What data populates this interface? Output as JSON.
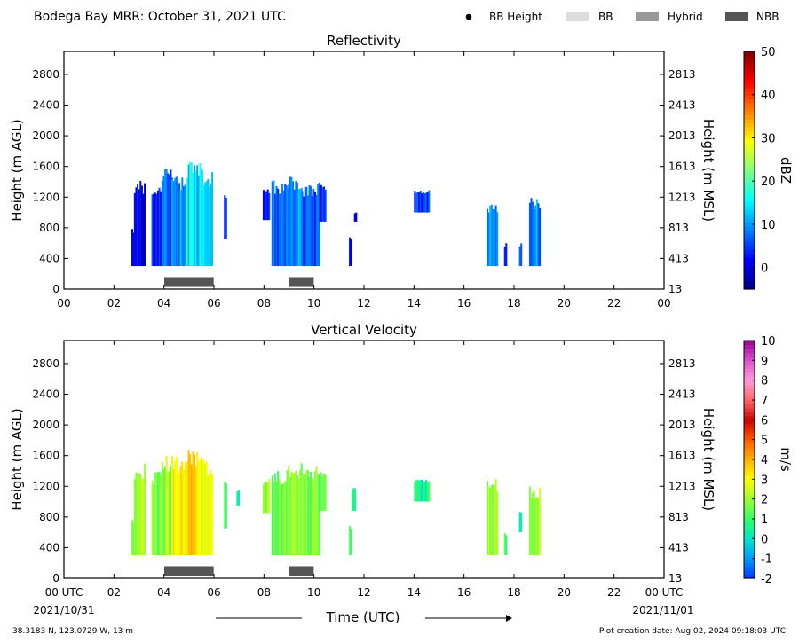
{
  "header": {
    "title": "Bodega Bay MRR:  October 31, 2021 UTC",
    "legend": [
      {
        "label": "BB Height",
        "kind": "marker",
        "color": "#000000"
      },
      {
        "label": "BB",
        "kind": "patch",
        "color": "#dddddd"
      },
      {
        "label": "Hybrid",
        "kind": "patch",
        "color": "#999999"
      },
      {
        "label": "NBB",
        "kind": "patch",
        "color": "#555555"
      }
    ]
  },
  "footer": {
    "location": "38.3183 N, 123.0729 W, 13 m",
    "creation": "Plot creation date: Aug 02, 2024 09:18:03 UTC",
    "xlabel": "Time (UTC)",
    "start_date": "2021/10/31",
    "end_date": "2021/11/01"
  },
  "chart_data": [
    {
      "type": "heatmap",
      "title": "Reflectivity",
      "ylabel": "Height (m AGL)",
      "ylabel_right": "Height (m MSL)",
      "x_ticks": [
        "00",
        "02",
        "04",
        "06",
        "08",
        "10",
        "12",
        "14",
        "16",
        "18",
        "20",
        "22",
        "00"
      ],
      "xlim": [
        0,
        24
      ],
      "ylim": [
        0,
        3100
      ],
      "y_ticks": [
        0,
        400,
        800,
        1200,
        1600,
        2000,
        2400,
        2800
      ],
      "y_ticks_right": [
        "13",
        "413",
        "813",
        "1213",
        "1613",
        "2013",
        "2413",
        "2813"
      ],
      "colorbar": {
        "label": "dBZ",
        "range": [
          -5,
          50
        ],
        "ticks": [
          "0",
          "10",
          "20",
          "30",
          "40",
          "50"
        ],
        "tick_values": [
          0,
          10,
          20,
          30,
          40,
          50
        ],
        "colors": [
          "#00007f",
          "#0000ff",
          "#007fff",
          "#00ffff",
          "#7fff7f",
          "#ffff00",
          "#ff7f00",
          "#ff0000",
          "#7f0000"
        ]
      },
      "precip_columns": [
        {
          "start": 2.7,
          "end": 2.8,
          "top": 800,
          "base": 300,
          "level": 1
        },
        {
          "start": 2.8,
          "end": 3.2,
          "top": 1420,
          "base": 300,
          "level": 2
        },
        {
          "start": 3.5,
          "end": 3.9,
          "top": 1400,
          "base": 300,
          "level": 3
        },
        {
          "start": 3.9,
          "end": 4.3,
          "top": 1620,
          "base": 300,
          "level": 8
        },
        {
          "start": 4.3,
          "end": 4.9,
          "top": 1500,
          "base": 300,
          "level": 10
        },
        {
          "start": 4.9,
          "end": 5.5,
          "top": 1680,
          "base": 300,
          "level": 14
        },
        {
          "start": 5.5,
          "end": 5.9,
          "top": 1560,
          "base": 300,
          "level": 12
        },
        {
          "start": 6.4,
          "end": 6.5,
          "top": 1300,
          "base": 650,
          "level": 3
        },
        {
          "start": 7.95,
          "end": 8.2,
          "top": 1300,
          "base": 900,
          "level": 3
        },
        {
          "start": 8.3,
          "end": 8.9,
          "top": 1430,
          "base": 300,
          "level": 7
        },
        {
          "start": 8.9,
          "end": 9.5,
          "top": 1500,
          "base": 300,
          "level": 9
        },
        {
          "start": 9.5,
          "end": 10.2,
          "top": 1400,
          "base": 300,
          "level": 6
        },
        {
          "start": 10.2,
          "end": 10.45,
          "top": 1380,
          "base": 880,
          "level": 4
        },
        {
          "start": 11.4,
          "end": 11.5,
          "top": 700,
          "base": 300,
          "level": 3
        },
        {
          "start": 11.6,
          "end": 11.7,
          "top": 1000,
          "base": 880,
          "level": 3
        },
        {
          "start": 14.0,
          "end": 14.6,
          "top": 1300,
          "base": 1000,
          "level": 4
        },
        {
          "start": 16.9,
          "end": 17.3,
          "top": 1150,
          "base": 300,
          "level": 10
        },
        {
          "start": 17.6,
          "end": 17.7,
          "top": 600,
          "base": 300,
          "level": 4
        },
        {
          "start": 18.2,
          "end": 18.3,
          "top": 600,
          "base": 300,
          "level": 4
        },
        {
          "start": 18.6,
          "end": 19.0,
          "top": 1200,
          "base": 300,
          "level": 10
        }
      ],
      "melting_layer": [
        {
          "start": 4.0,
          "end": 6.0,
          "type": "NBB"
        },
        {
          "start": 9.0,
          "end": 10.0,
          "type": "NBB"
        }
      ]
    },
    {
      "type": "heatmap",
      "title": "Vertical Velocity",
      "ylabel": "Height (m AGL)",
      "ylabel_right": "Height (m MSL)",
      "x_ticks": [
        "00 UTC",
        "02",
        "04",
        "06",
        "08",
        "10",
        "12",
        "14",
        "16",
        "18",
        "20",
        "22",
        "00 UTC"
      ],
      "xlim": [
        0,
        24
      ],
      "ylim": [
        0,
        3100
      ],
      "y_ticks": [
        0,
        400,
        800,
        1200,
        1600,
        2000,
        2400,
        2800
      ],
      "y_ticks_right": [
        "13",
        "413",
        "813",
        "1213",
        "1613",
        "2013",
        "2413",
        "2813"
      ],
      "colorbar": {
        "label": "m/s",
        "range": [
          -2,
          10
        ],
        "ticks": [
          "-2",
          "-1",
          "0",
          "1",
          "2",
          "3",
          "4",
          "5",
          "6",
          "7",
          "8",
          "9",
          "10"
        ],
        "tick_values": [
          -2,
          -1,
          0,
          1,
          2,
          3,
          4,
          5,
          6,
          7,
          8,
          9,
          10
        ],
        "colors": [
          "#0033ff",
          "#0099ff",
          "#00e5cc",
          "#33ff66",
          "#99ff33",
          "#ffff00",
          "#ffb300",
          "#ff5a00",
          "#cc0000",
          "#ff6666",
          "#ff99dd",
          "#dd55cc",
          "#990099"
        ]
      },
      "precip_columns": [
        {
          "start": 2.7,
          "end": 2.8,
          "top": 800,
          "base": 300,
          "level": 1.5
        },
        {
          "start": 2.8,
          "end": 3.2,
          "top": 1500,
          "base": 300,
          "level": 2.0
        },
        {
          "start": 3.5,
          "end": 3.9,
          "top": 1400,
          "base": 300,
          "level": 1.5
        },
        {
          "start": 3.9,
          "end": 4.3,
          "top": 1620,
          "base": 300,
          "level": 2.0
        },
        {
          "start": 4.3,
          "end": 4.9,
          "top": 1600,
          "base": 300,
          "level": 3.0
        },
        {
          "start": 4.9,
          "end": 5.5,
          "top": 1700,
          "base": 300,
          "level": 3.5
        },
        {
          "start": 5.5,
          "end": 5.9,
          "top": 1560,
          "base": 300,
          "level": 2.5
        },
        {
          "start": 6.4,
          "end": 6.5,
          "top": 1300,
          "base": 650,
          "level": 0.8
        },
        {
          "start": 6.9,
          "end": 7.0,
          "top": 1150,
          "base": 950,
          "level": 0.8
        },
        {
          "start": 7.95,
          "end": 8.2,
          "top": 1300,
          "base": 850,
          "level": 1.8
        },
        {
          "start": 8.3,
          "end": 8.9,
          "top": 1400,
          "base": 300,
          "level": 1.5
        },
        {
          "start": 8.9,
          "end": 9.5,
          "top": 1500,
          "base": 300,
          "level": 1.8
        },
        {
          "start": 9.5,
          "end": 10.2,
          "top": 1500,
          "base": 300,
          "level": 1.6
        },
        {
          "start": 10.2,
          "end": 10.45,
          "top": 1400,
          "base": 880,
          "level": 1.2
        },
        {
          "start": 11.4,
          "end": 11.5,
          "top": 700,
          "base": 300,
          "level": 0.5
        },
        {
          "start": 11.5,
          "end": 11.65,
          "top": 1200,
          "base": 880,
          "level": 0.5
        },
        {
          "start": 14.0,
          "end": 14.6,
          "top": 1300,
          "base": 1000,
          "level": 0.5
        },
        {
          "start": 16.9,
          "end": 17.3,
          "top": 1300,
          "base": 300,
          "level": 2.0
        },
        {
          "start": 17.6,
          "end": 17.7,
          "top": 600,
          "base": 300,
          "level": 1.2
        },
        {
          "start": 18.2,
          "end": 18.3,
          "top": 900,
          "base": 600,
          "level": 0.5
        },
        {
          "start": 18.6,
          "end": 19.0,
          "top": 1200,
          "base": 300,
          "level": 2.0
        }
      ],
      "melting_layer": [
        {
          "start": 4.0,
          "end": 6.0,
          "type": "NBB"
        },
        {
          "start": 9.0,
          "end": 10.0,
          "type": "NBB"
        }
      ]
    }
  ]
}
